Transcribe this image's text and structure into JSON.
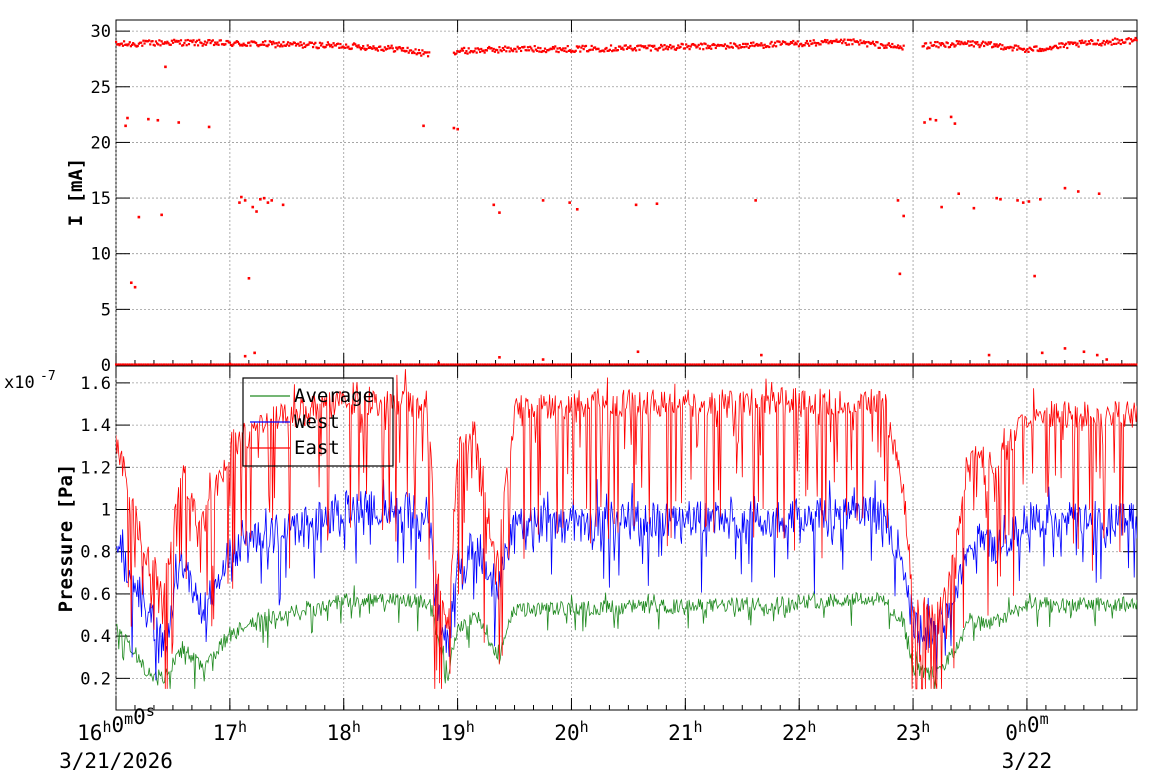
{
  "chart_data": [
    {
      "type": "scatter",
      "panel": "top",
      "ylabel": "I [mA]",
      "ylim": [
        0,
        31
      ],
      "yticks": [
        0,
        5,
        10,
        15,
        20,
        25,
        30
      ],
      "grid": true,
      "series": [
        {
          "color": "#ff0000",
          "main_level_segments": [
            {
              "x": [
                "16:00",
                "16:30",
                "17:00",
                "17:30",
                "18:00",
                "18:30",
                "18:45"
              ],
              "y": [
                28.8,
                29.0,
                28.9,
                28.8,
                28.7,
                28.4,
                27.9
              ]
            },
            {
              "x": [
                "18:58",
                "19:30",
                "20:00",
                "20:30",
                "21:00",
                "21:30",
                "22:00",
                "22:30",
                "22:55"
              ],
              "y": [
                28.2,
                28.4,
                28.4,
                28.5,
                28.6,
                28.7,
                28.9,
                29.0,
                28.5
              ]
            },
            {
              "x": [
                "23:05",
                "23:30",
                "23:50",
                "24:00",
                "24:30",
                "24:58"
              ],
              "y": [
                28.7,
                28.9,
                28.6,
                28.3,
                28.9,
                29.2
              ]
            }
          ],
          "scattered_points": [
            [
              "16:05",
              21.5
            ],
            [
              "16:06",
              22.2
            ],
            [
              "16:08",
              7.4
            ],
            [
              "16:10",
              7.0
            ],
            [
              "16:12",
              13.3
            ],
            [
              "16:17",
              22.1
            ],
            [
              "16:22",
              22.0
            ],
            [
              "16:24",
              13.5
            ],
            [
              "16:26",
              26.8
            ],
            [
              "16:33",
              21.8
            ],
            [
              "16:49",
              21.4
            ],
            [
              "17:05",
              14.6
            ],
            [
              "17:06",
              15.1
            ],
            [
              "17:08",
              14.8
            ],
            [
              "17:10",
              7.8
            ],
            [
              "17:12",
              14.2
            ],
            [
              "17:14",
              13.8
            ],
            [
              "17:16",
              14.9
            ],
            [
              "17:18",
              15.0
            ],
            [
              "17:20",
              14.6
            ],
            [
              "17:22",
              14.8
            ],
            [
              "17:28",
              14.4
            ],
            [
              "18:42",
              21.5
            ],
            [
              "18:58",
              21.3
            ],
            [
              "19:00",
              21.2
            ],
            [
              "19:19",
              14.4
            ],
            [
              "19:22",
              13.7
            ],
            [
              "19:45",
              14.8
            ],
            [
              "19:59",
              14.6
            ],
            [
              "20:03",
              14.0
            ],
            [
              "20:34",
              14.4
            ],
            [
              "20:45",
              14.5
            ],
            [
              "21:37",
              14.8
            ],
            [
              "22:52",
              14.8
            ],
            [
              "22:53",
              8.2
            ],
            [
              "22:55",
              13.4
            ],
            [
              "23:06",
              21.8
            ],
            [
              "23:09",
              22.1
            ],
            [
              "23:12",
              22.0
            ],
            [
              "23:15",
              14.2
            ],
            [
              "23:20",
              22.3
            ],
            [
              "23:22",
              21.7
            ],
            [
              "23:24",
              15.4
            ],
            [
              "23:32",
              14.1
            ],
            [
              "23:44",
              15.0
            ],
            [
              "23:46",
              14.9
            ],
            [
              "23:55",
              14.8
            ],
            [
              "23:58",
              14.6
            ],
            [
              "24:01",
              14.7
            ],
            [
              "24:04",
              8.0
            ],
            [
              "24:07",
              14.9
            ],
            [
              "24:20",
              15.9
            ],
            [
              "24:27",
              15.6
            ],
            [
              "24:38",
              15.4
            ],
            [
              "16:10",
              0.0
            ],
            [
              "17:00",
              0.1
            ],
            [
              "17:08",
              0.8
            ],
            [
              "17:13",
              1.1
            ],
            [
              "18:50",
              0.2
            ],
            [
              "19:22",
              0.7
            ],
            [
              "19:45",
              0.5
            ],
            [
              "20:35",
              1.2
            ],
            [
              "21:40",
              0.9
            ],
            [
              "23:40",
              0.9
            ],
            [
              "24:08",
              1.1
            ],
            [
              "24:20",
              1.5
            ],
            [
              "24:30",
              1.2
            ],
            [
              "24:37",
              0.9
            ],
            [
              "24:42",
              0.5
            ]
          ]
        }
      ]
    },
    {
      "type": "line",
      "panel": "bottom",
      "ylabel": "Pressure [Pa]",
      "multiplier": "x10",
      "multiplier_exp": "-7",
      "ylim": [
        0.05,
        1.68
      ],
      "yticks": [
        "0.2",
        "0.4",
        "0.6",
        "0.8",
        "1",
        "1.2",
        "1.4",
        "1.6"
      ],
      "legend_position": "top-left",
      "grid": true,
      "series": [
        {
          "name": "Average",
          "color": "#228b22",
          "x": [
            "16:00",
            "16:15",
            "16:25",
            "16:35",
            "16:45",
            "17:00",
            "17:15",
            "17:45",
            "18:00",
            "18:30",
            "18:45",
            "18:48",
            "18:55",
            "19:00",
            "19:10",
            "19:20",
            "19:30",
            "19:45",
            "20:00",
            "20:30",
            "21:00",
            "21:30",
            "22:00",
            "22:30",
            "22:45",
            "22:55",
            "23:00",
            "23:10",
            "23:20",
            "23:30",
            "23:40",
            "23:50",
            "24:00",
            "24:30",
            "24:58"
          ],
          "y": [
            0.45,
            0.25,
            0.2,
            0.35,
            0.25,
            0.4,
            0.48,
            0.53,
            0.57,
            0.57,
            0.56,
            0.45,
            0.22,
            0.45,
            0.5,
            0.3,
            0.52,
            0.53,
            0.53,
            0.54,
            0.54,
            0.55,
            0.56,
            0.58,
            0.57,
            0.45,
            0.25,
            0.22,
            0.3,
            0.48,
            0.45,
            0.5,
            0.55,
            0.55,
            0.55
          ]
        },
        {
          "name": "West",
          "color": "#0000ff",
          "x": [
            "16:00",
            "16:15",
            "16:25",
            "16:35",
            "16:45",
            "17:00",
            "17:15",
            "17:45",
            "18:00",
            "18:30",
            "18:45",
            "18:48",
            "18:55",
            "19:00",
            "19:10",
            "19:20",
            "19:30",
            "19:45",
            "20:00",
            "20:30",
            "21:00",
            "21:30",
            "22:00",
            "22:30",
            "22:45",
            "22:55",
            "23:00",
            "23:10",
            "23:20",
            "23:30",
            "23:40",
            "23:50",
            "24:00",
            "24:30",
            "24:58"
          ],
          "y": [
            0.85,
            0.55,
            0.35,
            0.75,
            0.5,
            0.8,
            0.85,
            0.95,
            1.0,
            1.0,
            0.98,
            0.6,
            0.35,
            0.75,
            0.85,
            0.6,
            0.95,
            0.93,
            0.92,
            0.95,
            0.95,
            0.95,
            0.97,
            0.98,
            0.97,
            0.75,
            0.45,
            0.4,
            0.55,
            0.88,
            0.82,
            0.85,
            0.95,
            0.95,
            0.95
          ]
        },
        {
          "name": "East",
          "color": "#ff0000",
          "x": [
            "16:00",
            "16:15",
            "16:25",
            "16:35",
            "16:45",
            "17:00",
            "17:15",
            "17:45",
            "18:00",
            "18:30",
            "18:45",
            "18:48",
            "18:55",
            "19:00",
            "19:10",
            "19:20",
            "19:30",
            "19:45",
            "20:00",
            "20:30",
            "21:00",
            "21:30",
            "22:00",
            "22:30",
            "22:45",
            "22:55",
            "23:00",
            "23:10",
            "23:20",
            "23:30",
            "23:40",
            "23:50",
            "24:00",
            "24:30",
            "24:58"
          ],
          "y": [
            1.35,
            0.8,
            0.6,
            1.2,
            0.9,
            1.3,
            1.4,
            1.48,
            1.5,
            1.5,
            1.5,
            0.8,
            0.42,
            1.3,
            1.38,
            0.7,
            1.45,
            1.48,
            1.48,
            1.5,
            1.5,
            1.5,
            1.52,
            1.52,
            1.5,
            1.1,
            0.55,
            0.48,
            0.7,
            1.3,
            1.2,
            1.3,
            1.45,
            1.45,
            1.45
          ]
        }
      ]
    }
  ],
  "time_axis": {
    "tick_labels": [
      {
        "x": "16:00",
        "text": "16",
        "sup": "h",
        "text2": "0",
        "sup2": "m",
        "text3": "0",
        "sup3": "s"
      },
      {
        "x": "17:00",
        "text": "17",
        "sup": "h"
      },
      {
        "x": "18:00",
        "text": "18",
        "sup": "h"
      },
      {
        "x": "19:00",
        "text": "19",
        "sup": "h"
      },
      {
        "x": "20:00",
        "text": "20",
        "sup": "h"
      },
      {
        "x": "21:00",
        "text": "21",
        "sup": "h"
      },
      {
        "x": "22:00",
        "text": "22",
        "sup": "h"
      },
      {
        "x": "23:00",
        "text": "23",
        "sup": "h"
      },
      {
        "x": "24:00",
        "text": "0",
        "sup": "h",
        "text2": "0",
        "sup2": "m"
      }
    ],
    "date_labels": [
      {
        "x": "16:00",
        "text": "3/21/2026"
      },
      {
        "x": "24:00",
        "text": "3/22"
      }
    ]
  }
}
